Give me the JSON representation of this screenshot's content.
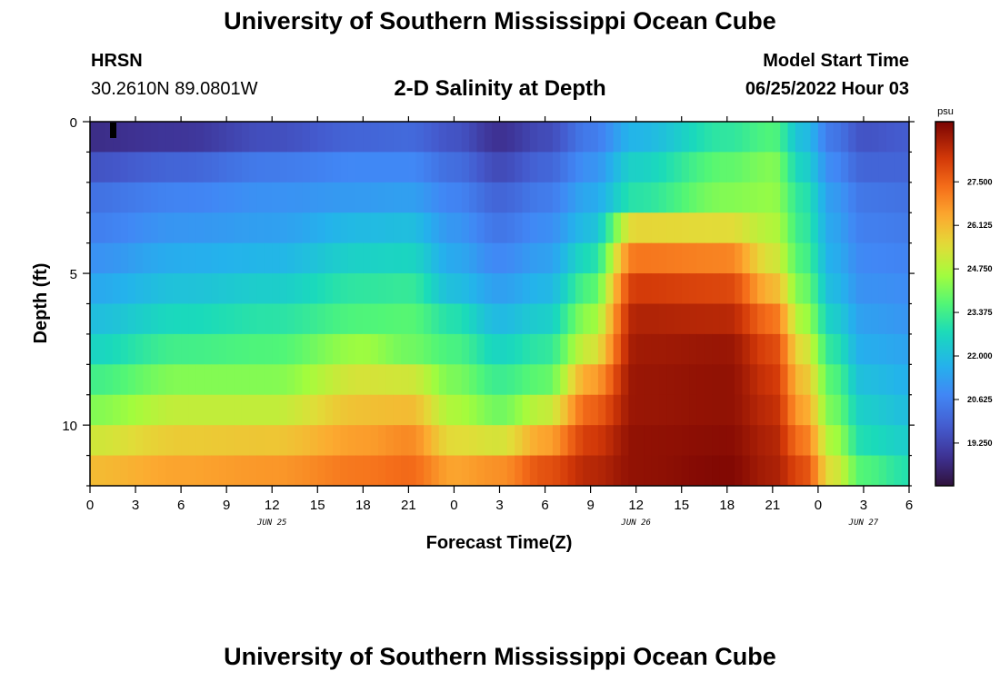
{
  "page": {
    "title_top": "University of Southern Mississippi Ocean Cube",
    "title_bottom": "University of Southern Mississippi Ocean Cube",
    "station_code": "HRSN",
    "coordinates": "30.2610N  89.0801W",
    "model_start_label": "Model Start Time",
    "model_start_value": "06/25/2022 Hour 03"
  },
  "chart_data": {
    "type": "heatmap",
    "title": "2-D Salinity at Depth",
    "xlabel": "Forecast Time(Z)",
    "ylabel": "Depth (ft)",
    "x_range": [
      0,
      54
    ],
    "y_range": [
      0,
      12
    ],
    "x_ticks": [
      {
        "value": 0,
        "label": "0"
      },
      {
        "value": 3,
        "label": "3"
      },
      {
        "value": 6,
        "label": "6"
      },
      {
        "value": 9,
        "label": "9"
      },
      {
        "value": 12,
        "label": "12"
      },
      {
        "value": 15,
        "label": "15"
      },
      {
        "value": 18,
        "label": "18"
      },
      {
        "value": 21,
        "label": "21"
      },
      {
        "value": 24,
        "label": "0"
      },
      {
        "value": 27,
        "label": "3"
      },
      {
        "value": 30,
        "label": "6"
      },
      {
        "value": 33,
        "label": "9"
      },
      {
        "value": 36,
        "label": "12"
      },
      {
        "value": 39,
        "label": "15"
      },
      {
        "value": 42,
        "label": "18"
      },
      {
        "value": 45,
        "label": "21"
      },
      {
        "value": 48,
        "label": "0"
      },
      {
        "value": 51,
        "label": "3"
      },
      {
        "value": 54,
        "label": "6"
      }
    ],
    "y_ticks": [
      {
        "value": 0,
        "label": "0"
      },
      {
        "value": 5,
        "label": "5"
      },
      {
        "value": 10,
        "label": "10"
      }
    ],
    "date_labels": [
      {
        "value": 12,
        "label": "JUN 25"
      },
      {
        "value": 36,
        "label": "JUN 26"
      },
      {
        "value": 51,
        "label": "JUN 27"
      }
    ],
    "colorbar": {
      "unit": "psu",
      "min": 17.9,
      "max": 29.4,
      "ticks": [
        27.5,
        26.125,
        24.75,
        23.375,
        22.0,
        20.625,
        19.25
      ],
      "tick_labels": [
        "27.500",
        "26.125",
        "24.750",
        "23.375",
        "22.000",
        "20.625",
        "19.250"
      ]
    },
    "depth_rows": [
      0.5,
      1.5,
      2.5,
      3.5,
      4.5,
      5.5,
      6.5,
      7.5,
      8.5,
      9.5,
      10.5,
      11.5
    ],
    "profile_hours": [
      0,
      6,
      12,
      18,
      21,
      24,
      27,
      30,
      33,
      36,
      42,
      45,
      47,
      49,
      51,
      54
    ],
    "salinity_profiles": [
      [
        18.7,
        19.6,
        20.3,
        20.6,
        21.0,
        21.5,
        22.0,
        22.6,
        23.4,
        24.2,
        25.2,
        26.1
      ],
      [
        18.9,
        20.0,
        20.7,
        21.1,
        21.6,
        22.1,
        22.7,
        23.4,
        24.2,
        25.0,
        25.8,
        26.5
      ],
      [
        19.5,
        20.5,
        21.0,
        21.3,
        21.8,
        22.4,
        23.0,
        23.6,
        24.2,
        25.0,
        25.9,
        26.7
      ],
      [
        20.0,
        20.8,
        21.2,
        21.9,
        22.5,
        23.1,
        23.6,
        24.5,
        25.3,
        26.0,
        26.6,
        27.2
      ],
      [
        20.1,
        20.8,
        21.3,
        22.0,
        22.6,
        23.2,
        23.7,
        24.0,
        25.2,
        26.1,
        26.9,
        27.4
      ],
      [
        19.6,
        20.2,
        20.7,
        21.1,
        21.5,
        22.0,
        22.9,
        23.5,
        24.1,
        24.7,
        25.5,
        26.5
      ],
      [
        18.8,
        19.4,
        20.0,
        20.4,
        20.8,
        21.3,
        21.9,
        22.6,
        23.3,
        24.0,
        25.3,
        26.8
      ],
      [
        19.4,
        20.0,
        20.5,
        20.9,
        21.3,
        21.8,
        22.4,
        23.1,
        23.8,
        25.0,
        26.5,
        27.8
      ],
      [
        20.5,
        21.0,
        21.5,
        22.0,
        22.8,
        23.6,
        24.4,
        25.2,
        26.5,
        27.5,
        28.2,
        28.6
      ],
      [
        21.8,
        22.5,
        23.0,
        25.6,
        27.2,
        28.2,
        28.7,
        28.9,
        29.0,
        29.0,
        29.1,
        29.1
      ],
      [
        23.1,
        23.8,
        24.2,
        25.5,
        27.0,
        28.0,
        28.6,
        29.0,
        29.1,
        29.1,
        29.2,
        29.3
      ],
      [
        23.6,
        24.2,
        24.4,
        24.8,
        25.3,
        26.2,
        27.3,
        28.0,
        28.3,
        28.5,
        28.7,
        28.8
      ],
      [
        22.0,
        22.5,
        23.0,
        23.2,
        23.5,
        24.0,
        24.6,
        25.4,
        26.0,
        26.5,
        27.2,
        27.9
      ],
      [
        20.4,
        20.8,
        21.2,
        21.4,
        21.6,
        21.9,
        22.4,
        23.0,
        23.6,
        24.0,
        24.6,
        25.3
      ],
      [
        19.6,
        20.0,
        20.4,
        20.6,
        20.8,
        21.0,
        21.3,
        21.6,
        22.0,
        22.4,
        22.8,
        23.6
      ],
      [
        19.8,
        20.0,
        20.3,
        20.5,
        20.7,
        20.9,
        21.1,
        21.4,
        21.7,
        22.0,
        22.4,
        22.9
      ]
    ],
    "marker_label": ""
  }
}
